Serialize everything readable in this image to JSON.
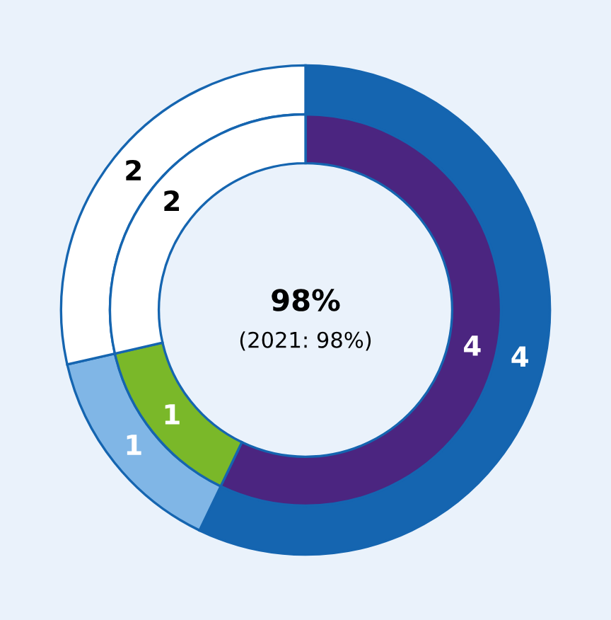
{
  "chart_data": {
    "type": "donut",
    "categories": [
      null,
      null,
      null
    ],
    "series": [
      {
        "values": [
          4,
          1,
          2
        ],
        "colors": [
          "#1565b0",
          "#80b6e6",
          "#ffffff"
        ]
      },
      {
        "values": [
          4,
          1,
          2
        ],
        "colors": [
          "#4b2580",
          "#7ab829",
          "#ffffff"
        ]
      }
    ],
    "data_labels": true,
    "legend": false,
    "annotations": [
      "98%",
      "(2021: 98%)"
    ]
  }
}
